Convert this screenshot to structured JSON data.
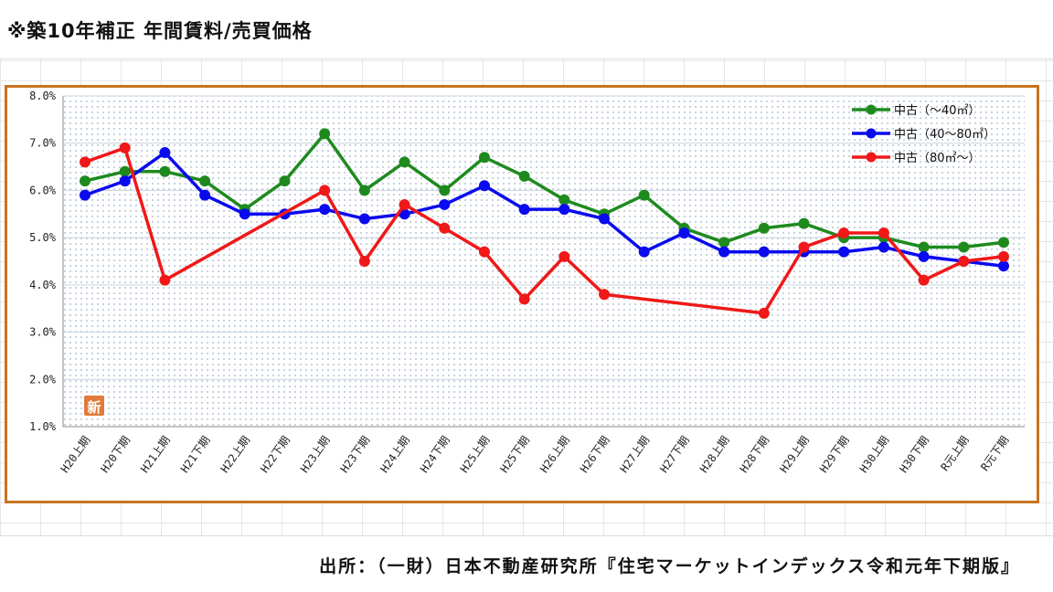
{
  "header": {
    "title": "※築10年補正 年間賃料/売買価格"
  },
  "footer": {
    "source": "出所：（一財）日本不動産研究所『住宅マーケットインデックス令和元年下期版』"
  },
  "badge": {
    "text": "新",
    "color": "#e07b39"
  },
  "chart_data": {
    "type": "line",
    "title": "",
    "xlabel": "",
    "ylabel": "",
    "ylim": [
      1.0,
      8.0
    ],
    "y_ticks": [
      "1.0%",
      "2.0%",
      "3.0%",
      "4.0%",
      "5.0%",
      "6.0%",
      "7.0%",
      "8.0%"
    ],
    "grid": true,
    "legend_position": "top-right",
    "categories": [
      "H20上期",
      "H20下期",
      "H21上期",
      "H21下期",
      "H22上期",
      "H22下期",
      "H23上期",
      "H23下期",
      "H24上期",
      "H24下期",
      "H25上期",
      "H25下期",
      "H26上期",
      "H26下期",
      "H27上期",
      "H27下期",
      "H28上期",
      "H28下期",
      "H29上期",
      "H29下期",
      "H30上期",
      "H30下期",
      "R元上期",
      "R元下期"
    ],
    "series": [
      {
        "name": "中古（～40㎡）",
        "color": "#1e8a1e",
        "values": [
          6.2,
          6.4,
          6.4,
          6.2,
          5.6,
          6.2,
          7.2,
          6.0,
          6.6,
          6.0,
          6.7,
          6.3,
          5.8,
          5.5,
          5.9,
          5.2,
          4.9,
          5.2,
          5.3,
          5.0,
          5.0,
          4.8,
          4.8,
          4.9
        ]
      },
      {
        "name": "中古（40～80㎡）",
        "color": "#0a0aef",
        "values": [
          5.9,
          6.2,
          6.8,
          5.9,
          5.5,
          5.5,
          5.6,
          5.4,
          5.5,
          5.7,
          6.1,
          5.6,
          5.6,
          5.4,
          4.7,
          5.1,
          4.7,
          4.7,
          4.7,
          4.7,
          4.8,
          4.6,
          4.5,
          4.4
        ]
      },
      {
        "name": "中古（80㎡～）",
        "color": "#f01818",
        "values": [
          6.6,
          6.9,
          4.1,
          null,
          null,
          null,
          6.0,
          4.5,
          5.7,
          5.2,
          4.7,
          3.7,
          4.6,
          3.8,
          null,
          null,
          null,
          3.4,
          4.8,
          5.1,
          5.1,
          4.1,
          4.5,
          4.6
        ]
      }
    ]
  }
}
